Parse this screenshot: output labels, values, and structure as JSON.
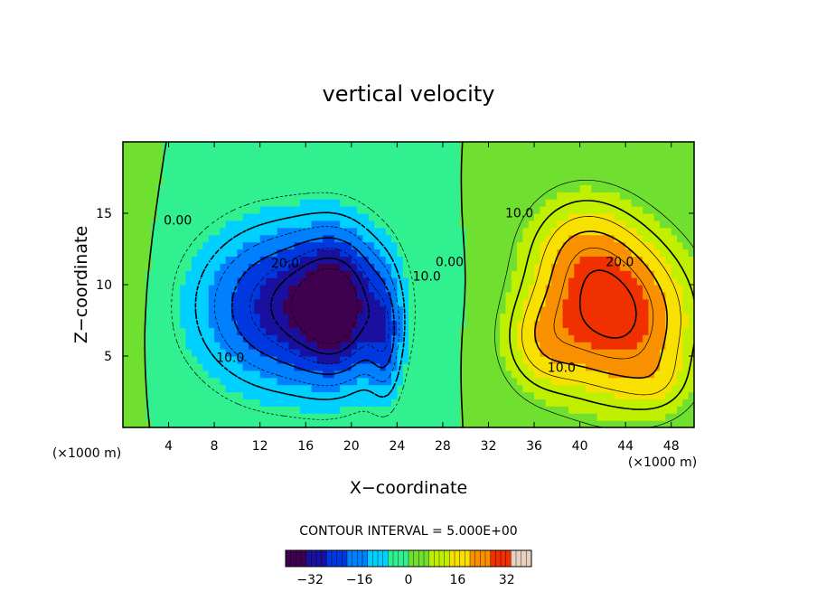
{
  "chart_data": {
    "type": "heatmap",
    "title": "vertical velocity",
    "xlabel": "X−coordinate",
    "ylabel": "Z−coordinate",
    "x_unit_label_left": "(×1000 m)",
    "x_unit_label_right": "(×1000 m)",
    "xlim": [
      0,
      50
    ],
    "ylim": [
      0,
      20
    ],
    "x_ticks": [
      4,
      8,
      12,
      16,
      20,
      24,
      28,
      32,
      36,
      40,
      44,
      48
    ],
    "y_ticks": [
      5,
      10,
      15
    ],
    "contour_interval_label": "CONTOUR INTERVAL = 5.000E+00",
    "contour_interval": 5,
    "colorbar": {
      "min": -40,
      "max": 40,
      "ticks": [
        -32,
        -16,
        0,
        16,
        32
      ],
      "colors": [
        "#400050",
        "#1a10a0",
        "#0038e0",
        "#0080ff",
        "#00d0ff",
        "#30f090",
        "#70e030",
        "#c0f000",
        "#f8e000",
        "#f89000",
        "#f03000",
        "#e8d0c0"
      ]
    },
    "contour_labels": [
      {
        "text": "0.00",
        "x": 4.8,
        "z": 14.2
      },
      {
        "text": "20.0",
        "x": 14.2,
        "z": 11.2
      },
      {
        "text": "10.0",
        "x": 9.4,
        "z": 4.6
      },
      {
        "text": "10.0",
        "x": 26.6,
        "z": 10.3
      },
      {
        "text": "0.00",
        "x": 28.6,
        "z": 11.3
      },
      {
        "text": "10.0",
        "x": 34.7,
        "z": 14.7
      },
      {
        "text": "20.0",
        "x": 43.5,
        "z": 11.3
      },
      {
        "text": "10.0",
        "x": 38.4,
        "z": 3.9
      }
    ],
    "extrema": [
      {
        "x": 14.5,
        "z": 8.5,
        "value": -30,
        "sigma_x": 5.5,
        "sigma_z": 4.0
      },
      {
        "x": 19.0,
        "z": 8.5,
        "value": -22,
        "sigma_x": 2.5,
        "sigma_z": 3.5
      },
      {
        "x": 23.0,
        "z": 6.0,
        "value": -14,
        "sigma_x": 1.0,
        "sigma_z": 3.0
      },
      {
        "x": 43.5,
        "z": 7.5,
        "value": 30,
        "sigma_x": 4.5,
        "sigma_z": 4.0
      },
      {
        "x": 40.0,
        "z": 12.5,
        "value": 14,
        "sigma_x": 3.5,
        "sigma_z": 3.0
      },
      {
        "x": 36.5,
        "z": 6.0,
        "value": 12,
        "sigma_x": 2.5,
        "sigma_z": 2.5
      },
      {
        "x": 1.0,
        "z": 10.0,
        "value": 3,
        "sigma_x": 1.5,
        "sigma_z": 5.0
      },
      {
        "x": 47.0,
        "z": 3.0,
        "value": 5,
        "sigma_x": 2.0,
        "sigma_z": 1.5
      }
    ],
    "legend": "bottom-colorbar",
    "grid": false
  }
}
